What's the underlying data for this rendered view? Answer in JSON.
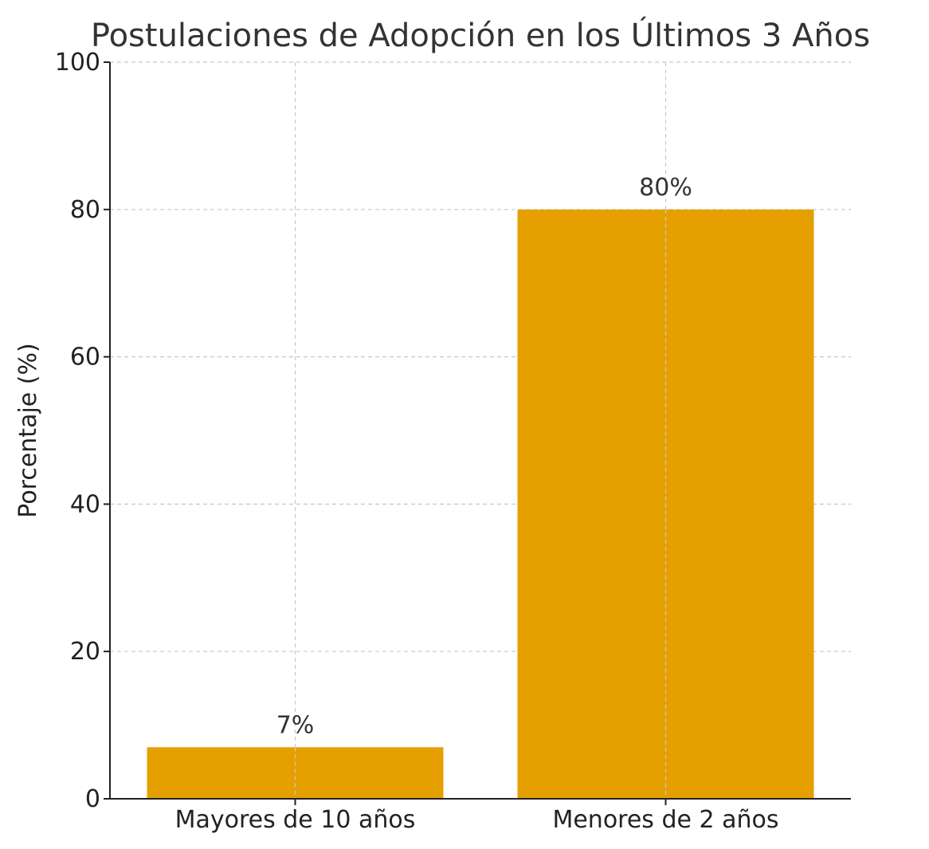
{
  "chart_data": {
    "type": "bar",
    "title": "Postulaciones de Adopción en los Últimos 3 Años",
    "xlabel": "",
    "ylabel": "Porcentaje (%)",
    "categories": [
      "Mayores de 10 años",
      "Menores de 2 años"
    ],
    "values": [
      7,
      80
    ],
    "data_labels": [
      "7%",
      "80%"
    ],
    "ylim": [
      0,
      100
    ],
    "yticks": [
      0,
      20,
      40,
      60,
      80,
      100
    ],
    "grid": true,
    "bar_color": "#E5A000"
  }
}
